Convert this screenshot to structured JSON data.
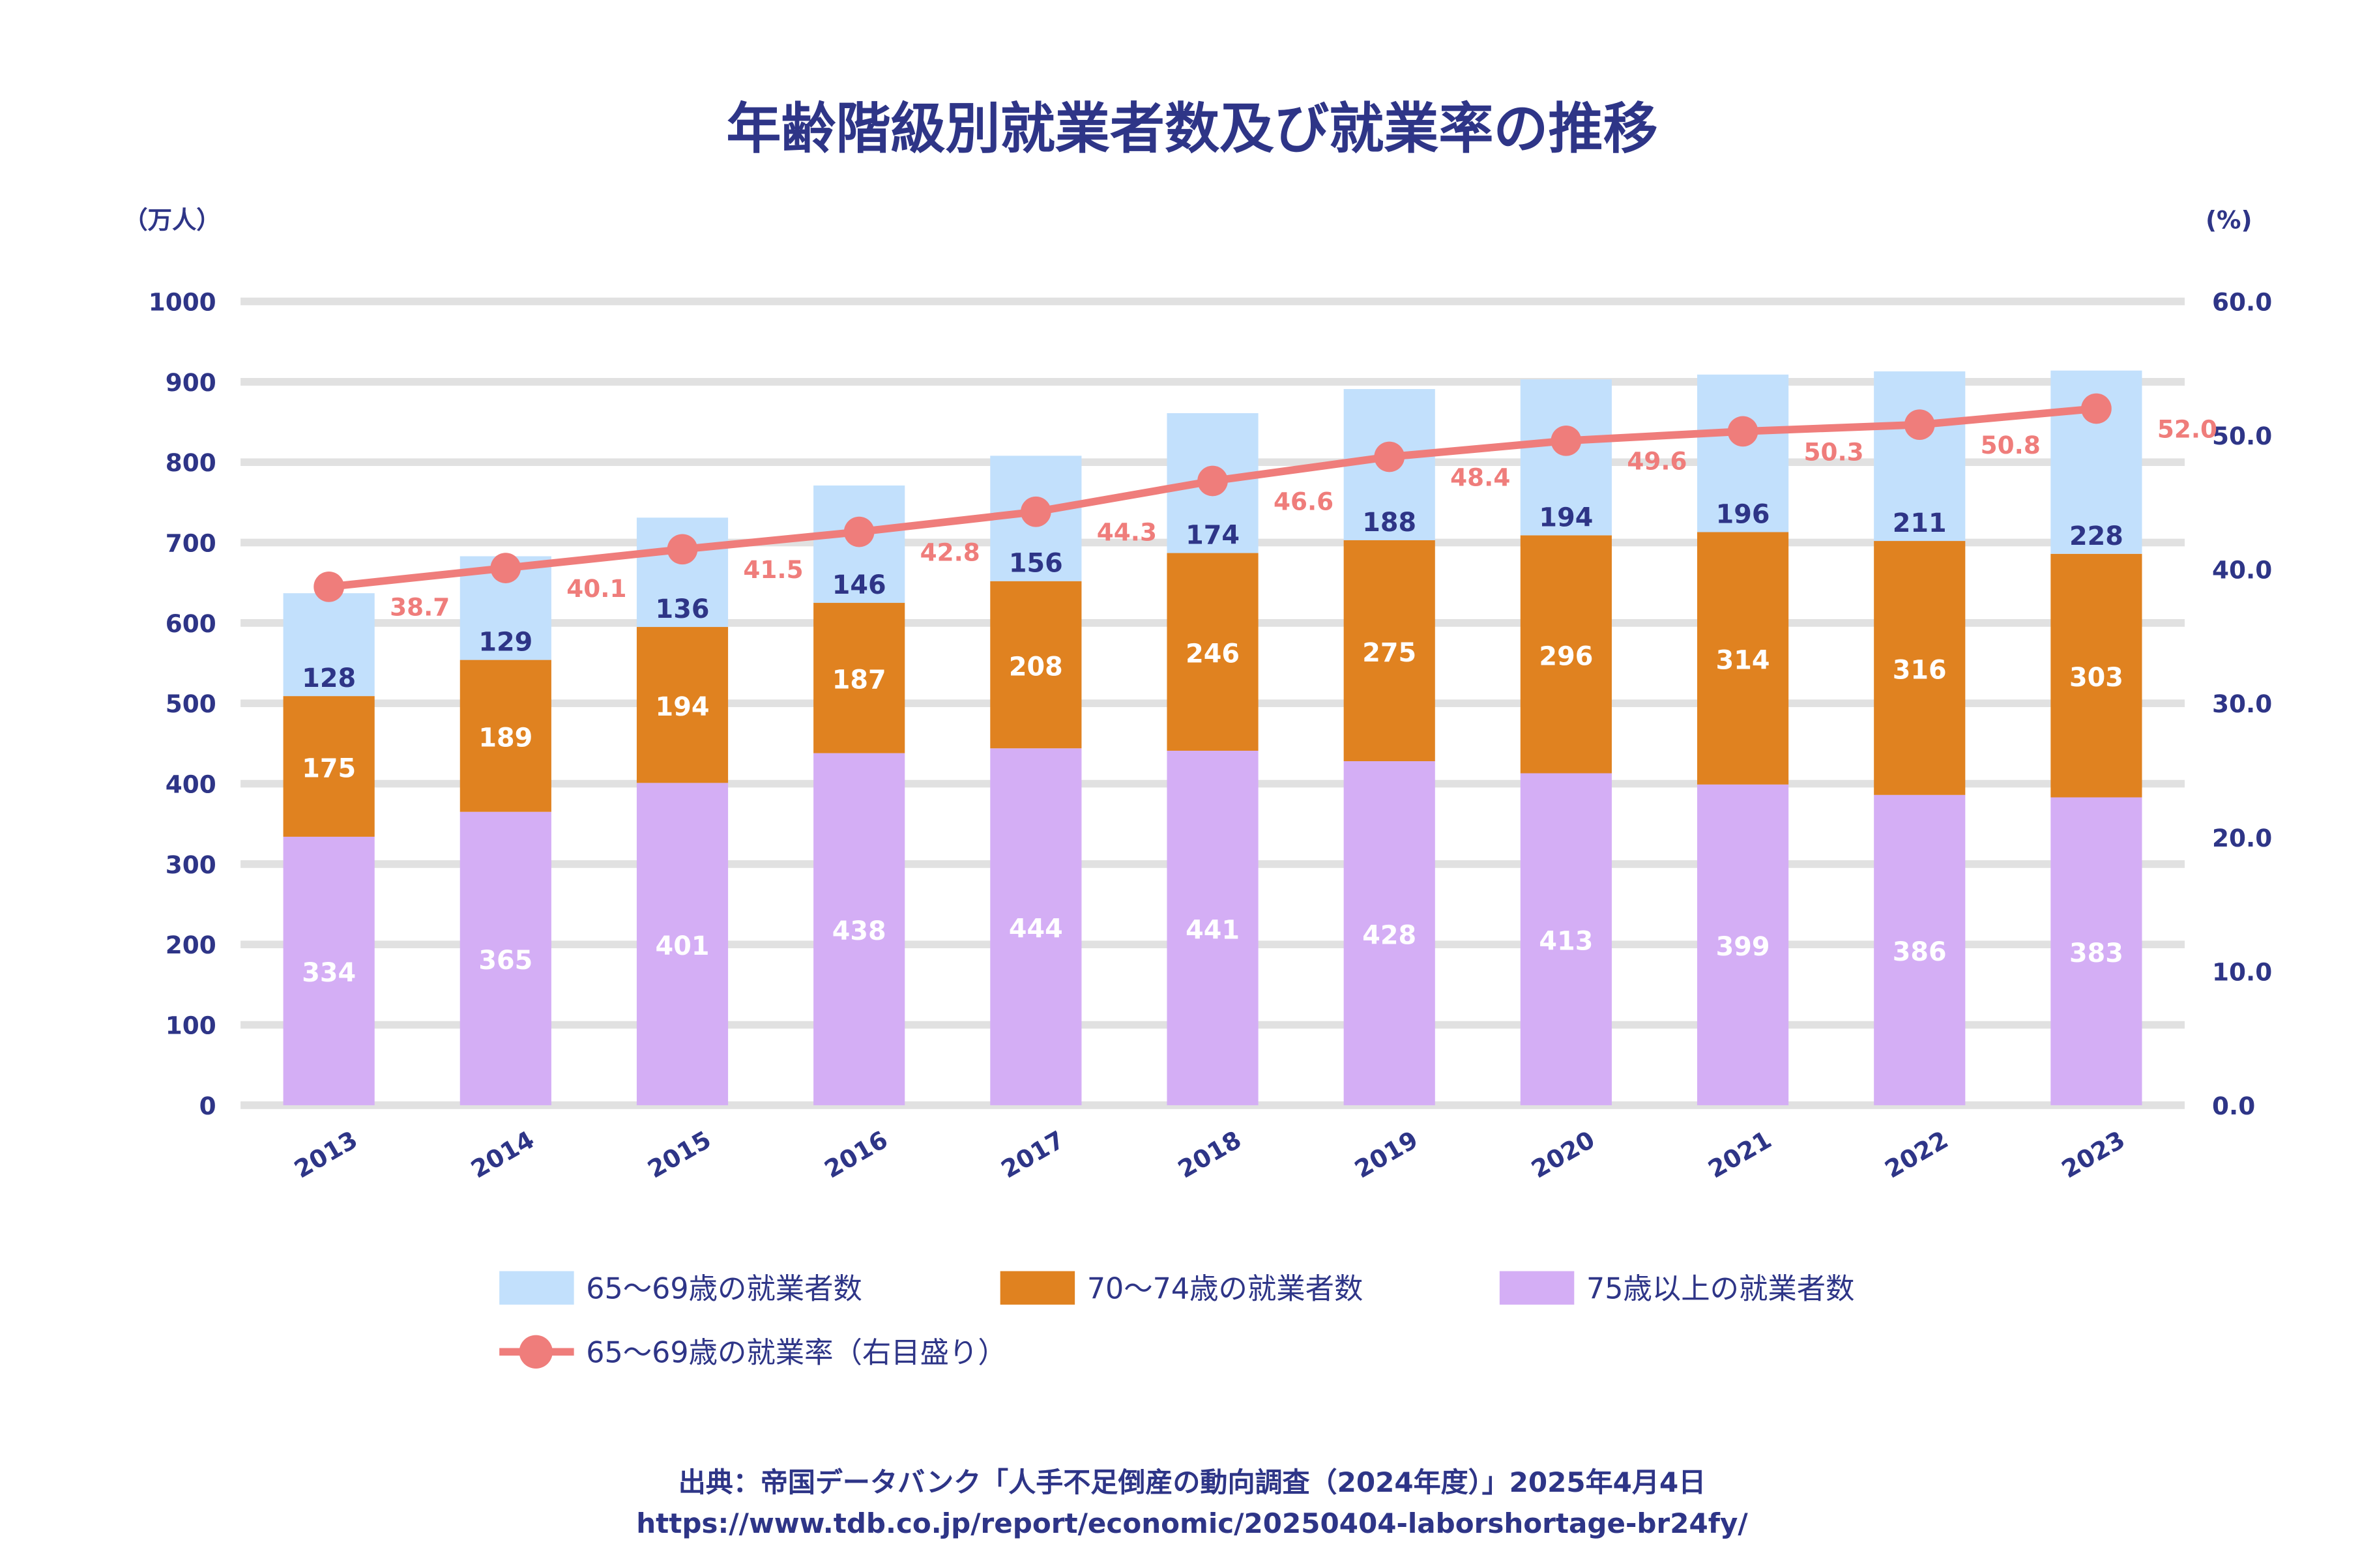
{
  "colors": {
    "text": "#2e3587",
    "grid": "#e1e1e1",
    "s65_69": "#c2e0fc",
    "s70_74": "#e08220",
    "s75plus": "#d4aef5",
    "rate": "#ef7d7b"
  },
  "chart_data": {
    "type": "bar",
    "stacked": true,
    "title": "年齢階級別就業者数及び就業率の推移",
    "ylabel": "（万人）",
    "y2label": "(%)",
    "categories": [
      "2013",
      "2014",
      "2015",
      "2016",
      "2017",
      "2018",
      "2019",
      "2020",
      "2021",
      "2022",
      "2023"
    ],
    "ylim": [
      0,
      1000
    ],
    "yticks": [
      "0",
      "100",
      "200",
      "300",
      "400",
      "500",
      "600",
      "700",
      "800",
      "900",
      "1000"
    ],
    "y2lim": [
      0,
      60
    ],
    "y2ticks": [
      "0.0",
      "10.0",
      "20.0",
      "30.0",
      "40.0",
      "50.0",
      "60.0"
    ],
    "grid": true,
    "legend_placement": "bottom",
    "series": [
      {
        "name": "75歳以上の就業者数",
        "type": "bar",
        "values": [
          334,
          365,
          401,
          438,
          444,
          441,
          428,
          413,
          399,
          386,
          383
        ]
      },
      {
        "name": "70〜74歳の就業者数",
        "type": "bar",
        "values": [
          175,
          189,
          194,
          187,
          208,
          246,
          275,
          296,
          314,
          316,
          303
        ]
      },
      {
        "name": "65〜69歳の就業者数",
        "type": "bar",
        "values": [
          128,
          129,
          136,
          146,
          156,
          174,
          188,
          194,
          196,
          211,
          228
        ]
      },
      {
        "name": "65〜69歳の就業率（右目盛り）",
        "type": "line",
        "axis": "right",
        "values": [
          38.7,
          40.1,
          41.5,
          42.8,
          44.3,
          46.6,
          48.4,
          49.6,
          50.3,
          50.8,
          52.0
        ],
        "labels": [
          "38.7",
          "40.1",
          "41.5",
          "42.8",
          "44.3",
          "46.6",
          "48.4",
          "49.6",
          "50.3",
          "50.8",
          "52.0"
        ]
      }
    ],
    "legend_order": [
      2,
      1,
      0,
      3
    ]
  },
  "source": {
    "line1": "出典：帝国データバンク「人手不足倒産の動向調査（2024年度）」2025年4月4日",
    "line2": "https://www.tdb.co.jp/report/economic/20250404-laborshortage-br24fy/"
  }
}
